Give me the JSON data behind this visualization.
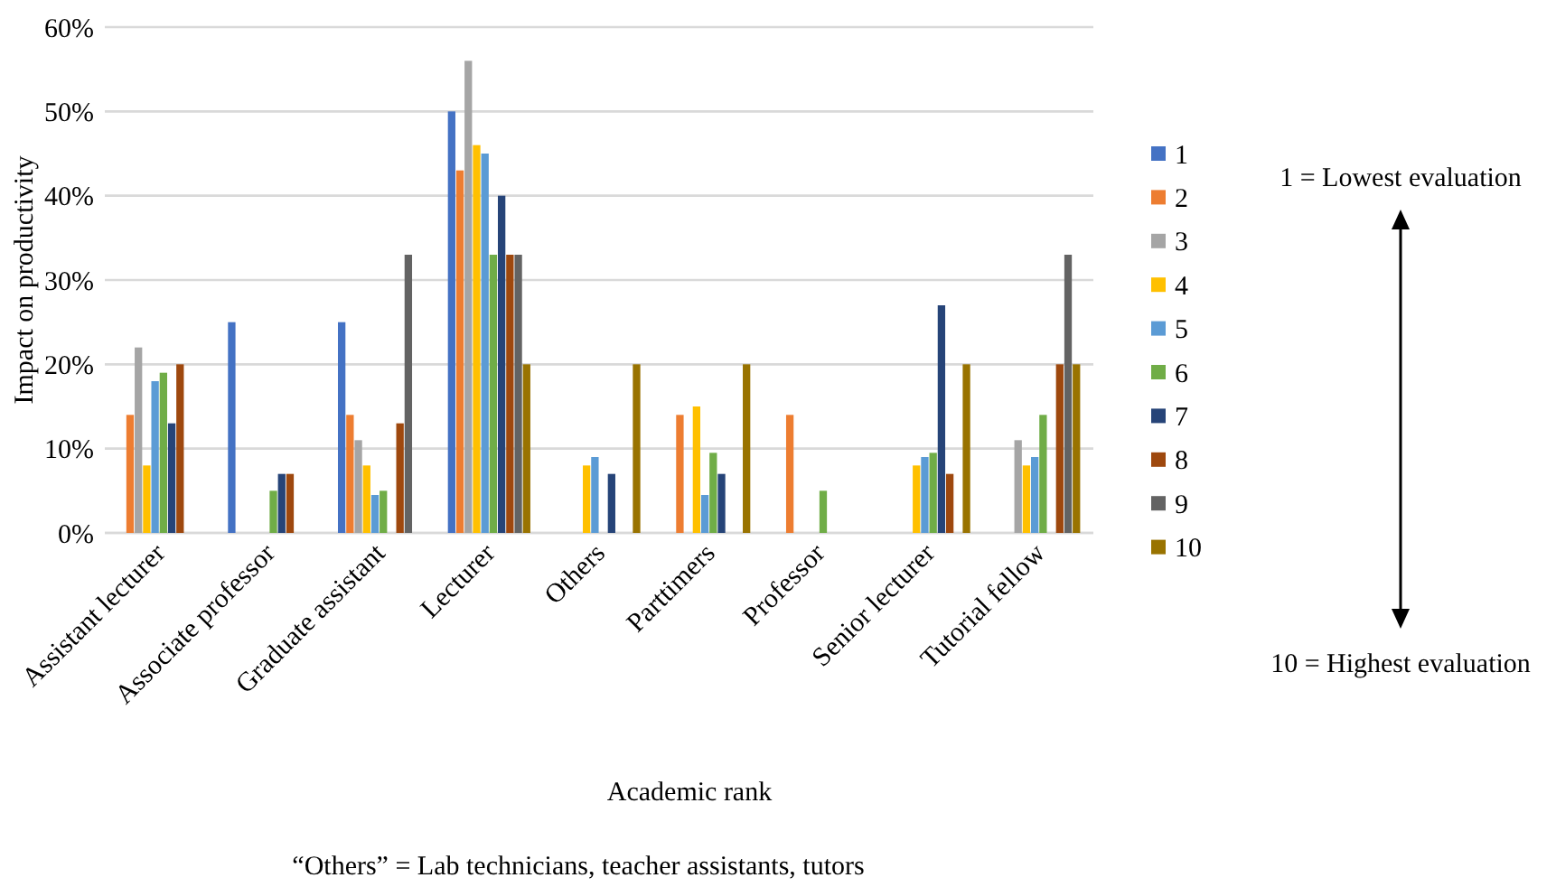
{
  "chart_data": {
    "type": "bar",
    "xlabel": "Academic rank",
    "ylabel": "Impact on productivity",
    "categories": [
      "Assistant lecturer",
      "Associate professor",
      "Graduate assistant",
      "Lecturer",
      "Others",
      "Parttimers",
      "Professor",
      "Senior lecturer",
      "Tutorial fellow"
    ],
    "series": [
      {
        "name": "1",
        "color": "#4472c4",
        "values": [
          null,
          25,
          25,
          50,
          null,
          null,
          null,
          null,
          null
        ]
      },
      {
        "name": "2",
        "color": "#ed7d31",
        "values": [
          14,
          null,
          14,
          43,
          null,
          14,
          14,
          null,
          null
        ]
      },
      {
        "name": "3",
        "color": "#a5a5a5",
        "values": [
          22,
          null,
          11,
          56,
          null,
          null,
          null,
          null,
          11
        ]
      },
      {
        "name": "4",
        "color": "#ffc000",
        "values": [
          8,
          null,
          8,
          46,
          8,
          15,
          null,
          8,
          8
        ]
      },
      {
        "name": "5",
        "color": "#5b9bd5",
        "values": [
          18,
          null,
          4.5,
          45,
          9,
          4.5,
          null,
          9,
          9
        ]
      },
      {
        "name": "6",
        "color": "#70ad47",
        "values": [
          19,
          5,
          5,
          33,
          null,
          9.5,
          5,
          9.5,
          14
        ]
      },
      {
        "name": "7",
        "color": "#264478",
        "values": [
          13,
          7,
          null,
          40,
          7,
          7,
          null,
          27,
          null
        ]
      },
      {
        "name": "8",
        "color": "#9e480e",
        "values": [
          20,
          7,
          13,
          33,
          null,
          null,
          null,
          7,
          20
        ]
      },
      {
        "name": "9",
        "color": "#636363",
        "values": [
          null,
          null,
          33,
          33,
          null,
          null,
          null,
          null,
          33
        ]
      },
      {
        "name": "10",
        "color": "#997300",
        "values": [
          null,
          null,
          null,
          20,
          20,
          20,
          null,
          20,
          20
        ]
      }
    ],
    "ylim": [
      0,
      60
    ],
    "yticks": [
      {
        "value": 0,
        "label": "0%"
      },
      {
        "value": 10,
        "label": "10%"
      },
      {
        "value": 20,
        "label": "20%"
      },
      {
        "value": 30,
        "label": "30%"
      },
      {
        "value": 40,
        "label": "40%"
      },
      {
        "value": 50,
        "label": "50%"
      },
      {
        "value": 60,
        "label": "60%"
      }
    ],
    "grid": "y",
    "legend": "right",
    "annotations": [
      "1 = Lowest evaluation",
      "10 = Highest evaluation",
      "“Others” = Lab technicians, teacher assistants, tutors"
    ]
  }
}
